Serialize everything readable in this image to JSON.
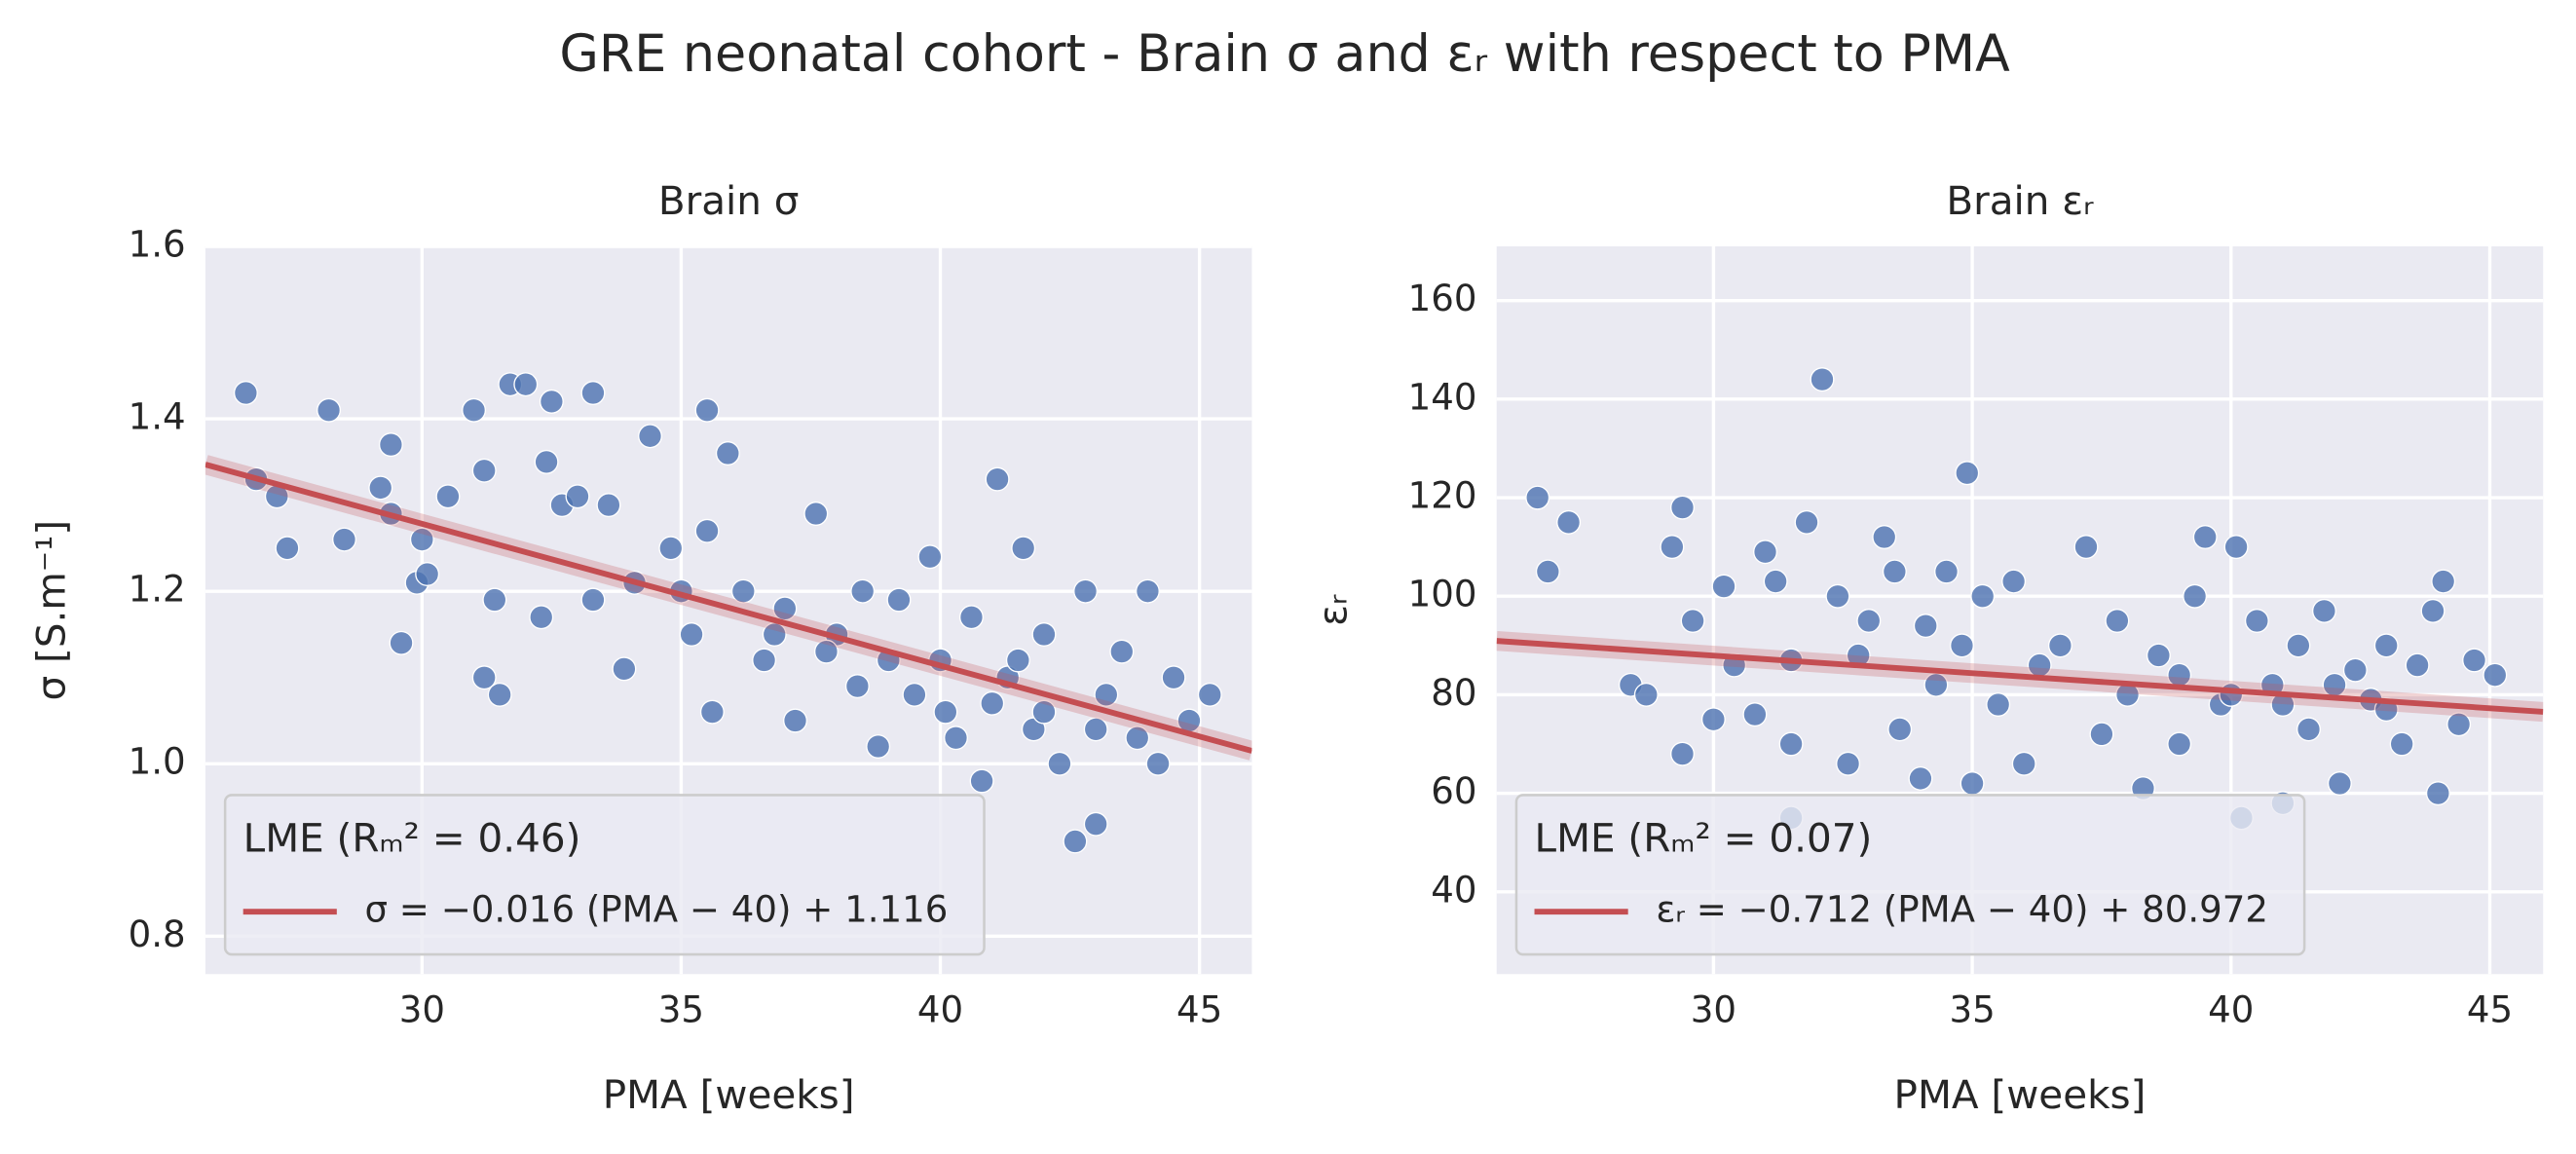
{
  "title": "GRE neonatal cohort - Brain σ and εᵣ with respect to PMA",
  "chart_data": [
    {
      "type": "scatter",
      "title": "Brain σ",
      "xlabel": "PMA [weeks]",
      "ylabel": "σ [S.m⁻¹]",
      "xlim": [
        25.82,
        46.01
      ],
      "ylim": [
        0.756,
        1.6
      ],
      "xticks": [
        30,
        35,
        40,
        45
      ],
      "yticks": [
        0.8,
        {
          "value": 1,
          "label": "1.0"
        },
        1.2,
        1.4,
        1.6
      ],
      "grid": true,
      "legend": "lower left",
      "legend_title": "LME (Rₘ² = 0.46)",
      "color": "#4c72b0",
      "x": [
        26.6,
        26.8,
        27.2,
        27.4,
        28.2,
        28.5,
        29.2,
        29.4,
        29.4,
        29.6,
        29.9,
        30.0,
        30.1,
        30.5,
        31.0,
        31.2,
        31.2,
        31.4,
        31.5,
        31.7,
        32.0,
        32.3,
        32.4,
        32.5,
        32.7,
        33.0,
        33.3,
        33.3,
        33.6,
        33.9,
        34.1,
        34.4,
        34.8,
        35.0,
        35.2,
        35.5,
        35.5,
        35.6,
        35.9,
        36.2,
        36.6,
        37.0,
        37.2,
        37.6,
        38.0,
        38.4,
        38.8,
        39.2,
        39.5,
        39.8,
        40.0,
        40.3,
        40.6,
        40.8,
        41.1,
        41.3,
        41.6,
        41.8,
        42.0,
        42.3,
        42.6,
        42.8,
        43.0,
        43.2,
        43.5,
        43.8,
        44.0,
        44.2,
        44.5,
        44.8,
        45.2,
        40.1,
        39.0,
        41.0,
        42.0,
        43.0,
        38.5,
        37.8,
        36.8,
        41.5
      ],
      "values": [
        1.43,
        1.33,
        1.31,
        1.25,
        1.41,
        1.26,
        1.32,
        1.37,
        1.29,
        1.14,
        1.21,
        1.26,
        1.22,
        1.31,
        1.41,
        1.34,
        1.1,
        1.19,
        1.08,
        1.44,
        1.44,
        1.17,
        1.35,
        1.42,
        1.3,
        1.31,
        1.43,
        1.19,
        1.3,
        1.11,
        1.21,
        1.38,
        1.25,
        1.2,
        1.15,
        1.41,
        1.27,
        1.06,
        1.36,
        1.2,
        1.12,
        1.18,
        1.05,
        1.29,
        1.15,
        1.09,
        1.02,
        1.19,
        1.08,
        1.24,
        1.12,
        1.03,
        1.17,
        0.98,
        1.33,
        1.1,
        1.25,
        1.04,
        1.15,
        1.0,
        0.91,
        1.2,
        0.93,
        1.08,
        1.13,
        1.03,
        1.2,
        1.0,
        1.1,
        1.05,
        1.08,
        1.06,
        1.12,
        1.07,
        1.06,
        1.04,
        1.2,
        1.13,
        1.15,
        1.12
      ],
      "fit": {
        "name": "σ = −0.016 (PMA − 40) + 1.116",
        "color": "#c44e52",
        "x": [
          25.82,
          46.01
        ],
        "values": [
          1.347,
          1.015
        ]
      }
    },
    {
      "type": "scatter",
      "title": "Brain εᵣ",
      "xlabel": "PMA [weeks]",
      "ylabel": "εᵣ",
      "xlim": [
        25.81,
        46.03
      ],
      "ylim": [
        23.3,
        171
      ],
      "xticks": [
        30,
        35,
        40,
        45
      ],
      "yticks": [
        40,
        60,
        80,
        100,
        120,
        140,
        160
      ],
      "grid": true,
      "legend": "lower left",
      "legend_title": "LME (Rₘ² = 0.07)",
      "color": "#4c72b0",
      "x": [
        26.6,
        26.8,
        27.2,
        28.4,
        28.7,
        29.2,
        29.4,
        29.4,
        29.6,
        30.0,
        30.2,
        30.4,
        30.8,
        31.0,
        31.2,
        31.5,
        31.5,
        31.8,
        31.5,
        32.1,
        32.4,
        32.6,
        32.8,
        33.0,
        33.3,
        33.5,
        33.6,
        34.0,
        34.1,
        34.3,
        34.5,
        34.8,
        35.0,
        34.9,
        35.2,
        35.5,
        35.8,
        36.0,
        36.3,
        36.7,
        37.2,
        37.5,
        37.8,
        38.0,
        38.3,
        38.6,
        39.0,
        39.3,
        39.5,
        39.8,
        40.1,
        40.2,
        40.5,
        40.8,
        41.0,
        41.3,
        41.5,
        41.8,
        42.1,
        42.4,
        42.7,
        43.0,
        43.3,
        43.6,
        43.9,
        44.1,
        44.0,
        44.4,
        44.7,
        45.1,
        40.0,
        41.0,
        42.0,
        39.0,
        43.0
      ],
      "values": [
        120,
        105,
        115,
        82,
        80,
        110,
        118,
        68,
        95,
        75,
        102,
        86,
        76,
        109,
        103,
        87,
        70,
        115,
        55,
        144,
        100,
        66,
        88,
        95,
        112,
        105,
        73,
        63,
        94,
        82,
        105,
        90,
        62,
        125,
        100,
        78,
        103,
        66,
        86,
        90,
        110,
        72,
        95,
        80,
        61,
        88,
        70,
        100,
        112,
        78,
        110,
        55,
        95,
        82,
        58,
        90,
        73,
        97,
        62,
        85,
        79,
        90,
        70,
        86,
        97,
        103,
        60,
        74,
        87,
        84,
        80,
        78,
        82,
        84,
        77
      ],
      "fit": {
        "name": "εᵣ = −0.712 (PMA − 40) + 80.972",
        "color": "#c44e52",
        "x": [
          25.81,
          46.03
        ],
        "values": [
          90.93,
          76.53
        ]
      }
    }
  ]
}
